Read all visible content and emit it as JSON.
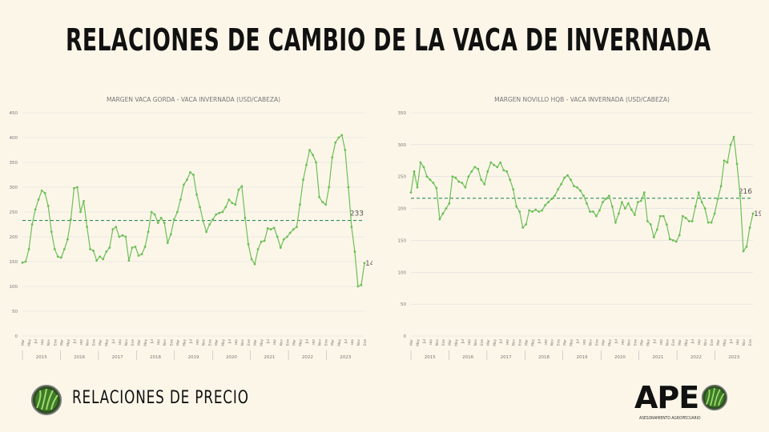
{
  "page": {
    "title": "RELACIONES DE CAMBIO DE LA VACA DE INVERNADA",
    "footer_label": "RELACIONES DE PRECIO",
    "logo_text": "APE",
    "logo_subtitle": "ASESORAMIENTO AGROPECUARIO"
  },
  "colors": {
    "line": "#6cbf57",
    "avg": "#2e8b57",
    "grid": "#dcdcdc",
    "text": "#777777"
  },
  "chart_data": [
    {
      "type": "line",
      "title": "MARGEN VACA GORDA - VACA INVERNADA (USD/CABEZA)",
      "ylim": [
        0,
        450
      ],
      "yticks": [
        0,
        50,
        100,
        150,
        200,
        250,
        300,
        350,
        400,
        450
      ],
      "years": [
        "2015",
        "2016",
        "2017",
        "2018",
        "2019",
        "2020",
        "2021",
        "2022",
        "2023"
      ],
      "month_labels": [
        "Mar",
        "May",
        "Jul",
        "sep",
        "Nov",
        "Ene"
      ],
      "average": 233,
      "average_label": "233",
      "last_label": "147",
      "values": [
        148,
        150,
        175,
        225,
        255,
        275,
        293,
        288,
        262,
        210,
        175,
        160,
        158,
        175,
        195,
        235,
        298,
        300,
        250,
        272,
        220,
        175,
        172,
        152,
        160,
        155,
        170,
        178,
        215,
        220,
        200,
        203,
        200,
        152,
        178,
        180,
        162,
        165,
        180,
        210,
        250,
        245,
        228,
        238,
        228,
        188,
        205,
        235,
        250,
        275,
        305,
        315,
        330,
        325,
        285,
        260,
        232,
        210,
        225,
        235,
        245,
        248,
        250,
        260,
        275,
        268,
        265,
        295,
        302,
        238,
        185,
        155,
        145,
        175,
        190,
        192,
        217,
        215,
        218,
        200,
        178,
        195,
        200,
        208,
        215,
        220,
        265,
        315,
        345,
        375,
        365,
        350,
        280,
        270,
        265,
        300,
        360,
        390,
        400,
        405,
        375,
        300,
        220,
        170,
        100,
        103,
        147
      ]
    },
    {
      "type": "line",
      "title": "MARGEN NOVILLO HQB - VACA INVERNADA (USD/CABEZA)",
      "ylim": [
        0,
        350
      ],
      "yticks": [
        0,
        50,
        100,
        150,
        200,
        250,
        300,
        350
      ],
      "years": [
        "2015",
        "2016",
        "2017",
        "2018",
        "2019",
        "2020",
        "2021",
        "2022",
        "2023"
      ],
      "month_labels": [
        "Mar",
        "May",
        "Jul",
        "sep",
        "Nov",
        "Ene"
      ],
      "average": 216,
      "average_label": "216",
      "last_label": "192",
      "values": [
        225,
        258,
        233,
        272,
        265,
        250,
        245,
        240,
        232,
        183,
        192,
        200,
        208,
        250,
        248,
        242,
        240,
        233,
        250,
        258,
        265,
        262,
        245,
        238,
        258,
        272,
        268,
        265,
        272,
        260,
        258,
        245,
        230,
        203,
        195,
        170,
        175,
        197,
        195,
        198,
        195,
        197,
        205,
        210,
        215,
        220,
        230,
        238,
        248,
        252,
        245,
        235,
        233,
        228,
        220,
        208,
        195,
        195,
        188,
        197,
        210,
        215,
        220,
        203,
        178,
        192,
        210,
        200,
        208,
        198,
        190,
        210,
        212,
        225,
        180,
        175,
        155,
        167,
        188,
        188,
        175,
        152,
        150,
        148,
        158,
        188,
        185,
        180,
        180,
        203,
        225,
        210,
        200,
        178,
        178,
        192,
        215,
        235,
        275,
        272,
        300,
        312,
        270,
        220,
        133,
        140,
        170,
        192
      ]
    }
  ]
}
